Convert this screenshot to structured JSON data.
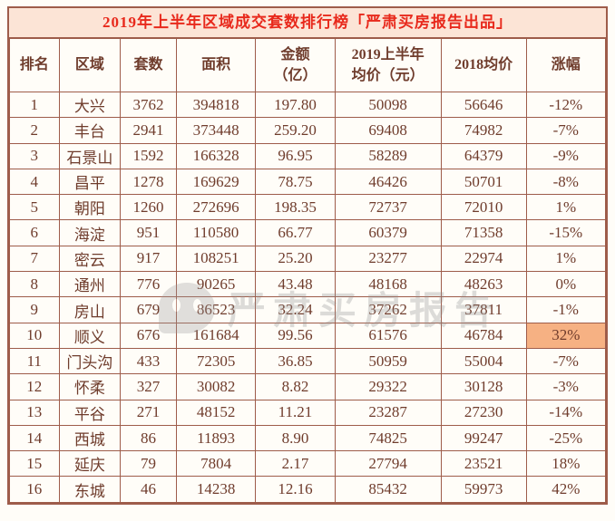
{
  "title": "2019年上半年区域成交套数排行榜「严肃买房报告出品」",
  "watermark": "严肃买房报告",
  "colors": {
    "title_text": "#e8291c",
    "title_bg": "#fce4d6",
    "border": "#9e5c4a",
    "body_text": "#6f3c2c",
    "highlight_bg": "#f6b183"
  },
  "chart_data": {
    "type": "table",
    "title": "2019年上半年区域成交套数排行榜「严肃买房报告出品」",
    "headers": [
      "排名",
      "区域",
      "套数",
      "面积",
      "金额（亿）",
      "2019上半年均价（元）",
      "2018均价",
      "涨幅"
    ],
    "rows": [
      [
        "1",
        "大兴",
        "3762",
        "394818",
        "197.80",
        "50098",
        "56646",
        "-12%"
      ],
      [
        "2",
        "丰台",
        "2941",
        "373448",
        "259.20",
        "69408",
        "74982",
        "-7%"
      ],
      [
        "3",
        "石景山",
        "1592",
        "166328",
        "96.95",
        "58289",
        "64379",
        "-9%"
      ],
      [
        "4",
        "昌平",
        "1278",
        "169629",
        "78.75",
        "46426",
        "50701",
        "-8%"
      ],
      [
        "5",
        "朝阳",
        "1260",
        "272696",
        "198.35",
        "72737",
        "72010",
        "1%"
      ],
      [
        "6",
        "海淀",
        "951",
        "110580",
        "66.77",
        "60379",
        "71358",
        "-15%"
      ],
      [
        "7",
        "密云",
        "917",
        "108251",
        "25.20",
        "23277",
        "22974",
        "1%"
      ],
      [
        "8",
        "通州",
        "776",
        "90265",
        "43.48",
        "48168",
        "48263",
        "0%"
      ],
      [
        "9",
        "房山",
        "679",
        "86523",
        "32.24",
        "37262",
        "37811",
        "-1%"
      ],
      [
        "10",
        "顺义",
        "676",
        "161684",
        "99.56",
        "61576",
        "46784",
        "32%"
      ],
      [
        "11",
        "门头沟",
        "433",
        "72305",
        "36.85",
        "50959",
        "55004",
        "-7%"
      ],
      [
        "12",
        "怀柔",
        "327",
        "30082",
        "8.82",
        "29322",
        "30128",
        "-3%"
      ],
      [
        "13",
        "平谷",
        "271",
        "48152",
        "11.21",
        "23287",
        "27230",
        "-14%"
      ],
      [
        "14",
        "西城",
        "86",
        "11893",
        "8.90",
        "74825",
        "99247",
        "-25%"
      ],
      [
        "15",
        "延庆",
        "79",
        "7804",
        "2.17",
        "27794",
        "23521",
        "18%"
      ],
      [
        "16",
        "东城",
        "46",
        "14238",
        "12.16",
        "85432",
        "59973",
        "42%"
      ]
    ],
    "highlight": {
      "row": 9,
      "col": 7
    }
  },
  "table": {
    "headers": [
      "排名",
      "区域",
      "套数",
      "面积",
      "金额\n（亿）",
      "2019上半年\n均价（元）",
      "2018均价",
      "涨幅"
    ]
  }
}
